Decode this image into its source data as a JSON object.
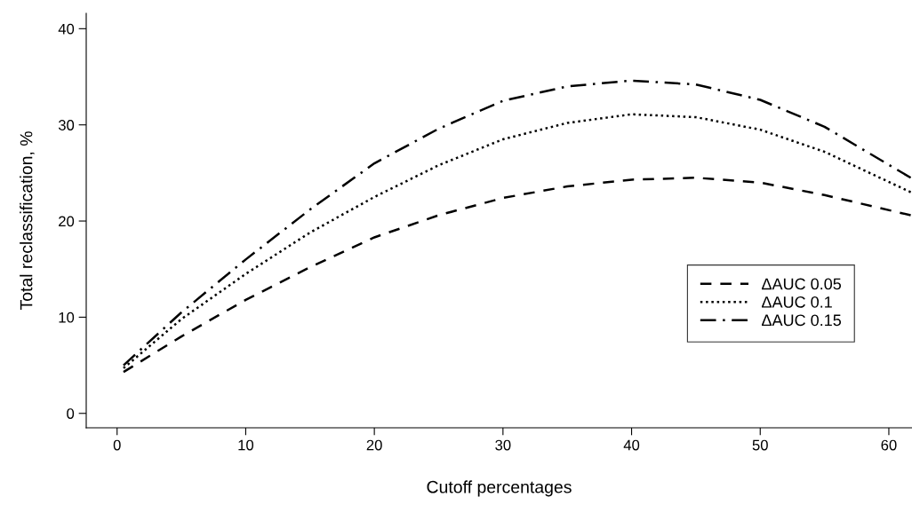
{
  "chart_data": {
    "type": "line",
    "xlabel": "Cutoff percentages",
    "ylabel": "Total reclassification, %",
    "x": [
      0.5,
      5,
      10,
      15,
      20,
      25,
      30,
      35,
      40,
      45,
      50,
      55,
      61.7
    ],
    "series": [
      {
        "name": "ΔAUC 0.05",
        "color": "#000000",
        "line_style": "dashed",
        "values": [
          4.3,
          8.0,
          11.8,
          15.2,
          18.3,
          20.6,
          22.4,
          23.6,
          24.3,
          24.5,
          24.0,
          22.7,
          20.6
        ]
      },
      {
        "name": "ΔAUC 0.1",
        "color": "#000000",
        "line_style": "dotted",
        "values": [
          4.7,
          9.8,
          14.5,
          18.8,
          22.5,
          25.8,
          28.5,
          30.2,
          31.1,
          30.8,
          29.5,
          27.2,
          23.0
        ]
      },
      {
        "name": "ΔAUC 0.15",
        "color": "#000000",
        "line_style": "dashdot",
        "values": [
          5.0,
          10.5,
          16.0,
          21.2,
          26.0,
          29.6,
          32.5,
          34.0,
          34.6,
          34.2,
          32.6,
          29.8,
          24.5
        ]
      }
    ],
    "xlim": [
      -2.4,
      61.8
    ],
    "ylim": [
      -1.5,
      41.6
    ],
    "xticks": [
      0,
      10,
      20,
      30,
      40,
      50,
      60
    ],
    "yticks": [
      0,
      10,
      20,
      30,
      40
    ],
    "grid": false,
    "legend": "right",
    "marker": "none"
  }
}
